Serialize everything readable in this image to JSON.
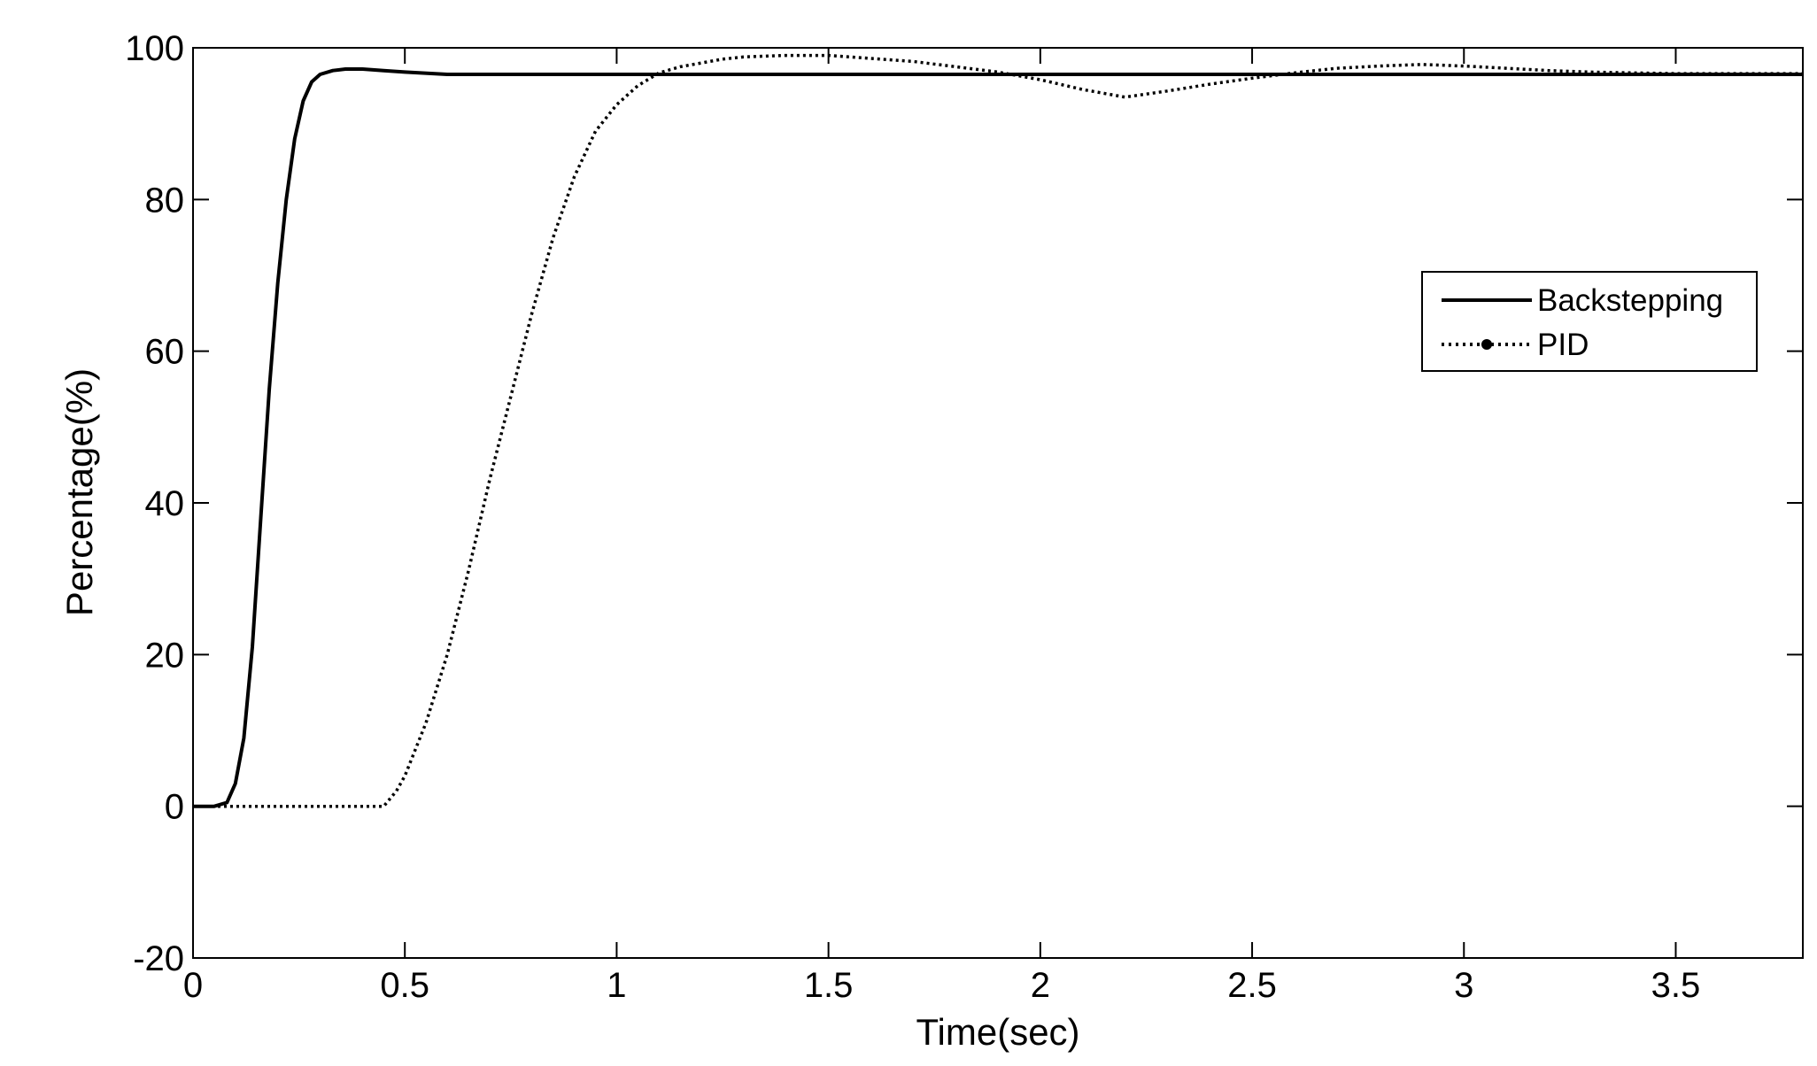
{
  "chart_data": {
    "type": "line",
    "title": "",
    "xlabel": "Time(sec)",
    "ylabel": "Percentage(%)",
    "xlim": [
      0,
      3.8
    ],
    "ylim": [
      -20,
      100
    ],
    "xticks": [
      0,
      0.5,
      1,
      1.5,
      2,
      2.5,
      3,
      3.5
    ],
    "xtick_labels": [
      "0",
      "0.5",
      "1",
      "1.5",
      "2",
      "2.5",
      "3",
      "3.5"
    ],
    "yticks": [
      -20,
      0,
      20,
      40,
      60,
      80,
      100
    ],
    "ytick_labels": [
      "-20",
      "0",
      "20",
      "40",
      "60",
      "80",
      "100"
    ],
    "grid": false,
    "legend_position": "center-right",
    "series": [
      {
        "name": "Backstepping",
        "style": "solid",
        "color": "#000000",
        "x": [
          0,
          0.05,
          0.08,
          0.1,
          0.12,
          0.14,
          0.16,
          0.18,
          0.2,
          0.22,
          0.24,
          0.26,
          0.28,
          0.3,
          0.33,
          0.36,
          0.4,
          0.45,
          0.5,
          0.6,
          0.8,
          1.0,
          1.5,
          2.0,
          2.5,
          3.0,
          3.5,
          3.8
        ],
        "y": [
          0,
          0,
          0.5,
          3,
          9,
          21,
          38,
          55,
          69,
          80,
          88,
          93,
          95.5,
          96.5,
          97,
          97.2,
          97.2,
          97.0,
          96.8,
          96.5,
          96.5,
          96.5,
          96.5,
          96.5,
          96.5,
          96.5,
          96.5,
          96.5
        ]
      },
      {
        "name": "PID",
        "style": "dotted",
        "color": "#000000",
        "x": [
          0,
          0.4,
          0.45,
          0.48,
          0.5,
          0.55,
          0.6,
          0.65,
          0.7,
          0.75,
          0.8,
          0.85,
          0.9,
          0.95,
          1.0,
          1.05,
          1.1,
          1.15,
          1.2,
          1.25,
          1.3,
          1.4,
          1.5,
          1.6,
          1.7,
          1.8,
          1.9,
          2.0,
          2.1,
          2.2,
          2.3,
          2.4,
          2.5,
          2.6,
          2.7,
          2.8,
          2.9,
          3.0,
          3.1,
          3.2,
          3.3,
          3.4,
          3.5,
          3.6,
          3.7,
          3.8
        ],
        "y": [
          0,
          0,
          0,
          2,
          4,
          11,
          20,
          31,
          43,
          54,
          65,
          75,
          83,
          89,
          92.5,
          95,
          96.7,
          97.5,
          98,
          98.5,
          98.8,
          99,
          99,
          98.6,
          98.2,
          97.5,
          96.8,
          95.8,
          94.5,
          93.5,
          94.3,
          95.2,
          96,
          96.7,
          97.3,
          97.6,
          97.8,
          97.6,
          97.3,
          97.0,
          96.8,
          96.7,
          96.6,
          96.6,
          96.6,
          96.6
        ]
      }
    ]
  }
}
